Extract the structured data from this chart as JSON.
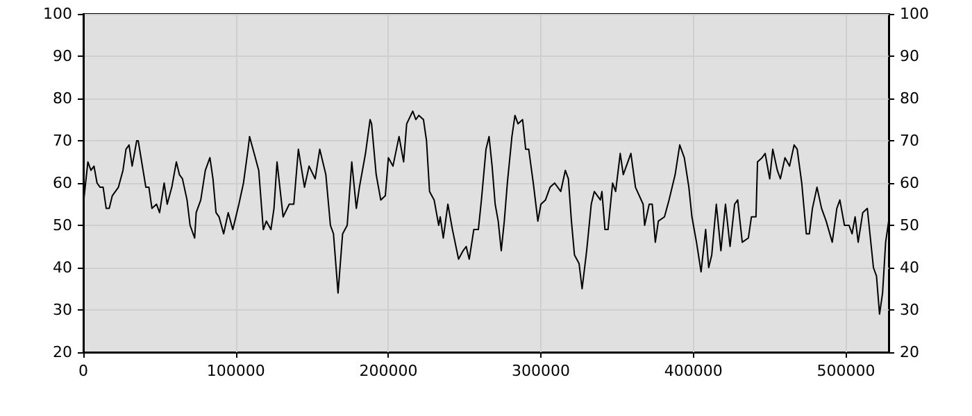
{
  "chart_data": {
    "type": "line",
    "x": [
      0,
      3000,
      5000,
      7000,
      9000,
      11000,
      13000,
      15000,
      17000,
      19000,
      23000,
      26000,
      28000,
      30000,
      32000,
      35000,
      36000,
      41000,
      43000,
      45000,
      48000,
      50000,
      53000,
      55000,
      58000,
      61000,
      63000,
      65000,
      68000,
      70000,
      73000,
      74000,
      77000,
      80000,
      83000,
      85000,
      87000,
      89000,
      92000,
      95000,
      98000,
      102000,
      105000,
      108000,
      109000,
      112000,
      115000,
      118000,
      120000,
      123000,
      125000,
      127000,
      131000,
      135000,
      138000,
      141000,
      145000,
      148000,
      152000,
      155000,
      159000,
      162000,
      164000,
      167000,
      170000,
      173000,
      176000,
      179000,
      181000,
      185000,
      188000,
      189000,
      192000,
      195000,
      198000,
      200000,
      203000,
      207000,
      210000,
      212000,
      216000,
      218000,
      220000,
      223000,
      225000,
      227000,
      230000,
      233000,
      234000,
      236000,
      239000,
      242000,
      246000,
      249000,
      251000,
      253000,
      256000,
      259000,
      261000,
      264000,
      266000,
      268000,
      270000,
      272000,
      274000,
      276000,
      278000,
      281000,
      283000,
      285000,
      288000,
      290000,
      292000,
      295000,
      298000,
      300000,
      303000,
      306000,
      309000,
      313000,
      316000,
      318000,
      320000,
      322000,
      325000,
      327000,
      330000,
      333000,
      335000,
      339000,
      340000,
      342000,
      344000,
      347000,
      349000,
      352000,
      354000,
      358000,
      359000,
      362000,
      367000,
      368000,
      371000,
      373000,
      375000,
      377000,
      381000,
      384000,
      388000,
      391000,
      394000,
      397000,
      399000,
      402000,
      405000,
      408000,
      410000,
      412000,
      415000,
      418000,
      421000,
      424000,
      427000,
      429000,
      432000,
      436000,
      438000,
      441000,
      442000,
      445000,
      447000,
      450000,
      452000,
      455000,
      457000,
      460000,
      463000,
      466000,
      468000,
      471000,
      474000,
      476000,
      478000,
      481000,
      484000,
      487000,
      491000,
      494000,
      496000,
      499000,
      502000,
      504000,
      506000,
      508000,
      511000,
      514000,
      516000,
      518000,
      520000,
      522000,
      524000,
      526000,
      528000
    ],
    "series": [
      {
        "color": "#000000",
        "values": [
          55,
          65,
          63,
          64,
          60,
          59,
          59,
          54,
          54,
          57,
          59,
          63,
          68,
          69,
          64,
          70,
          70,
          59,
          59,
          54,
          55,
          53,
          60,
          55,
          59,
          65,
          62,
          61,
          56,
          50,
          47,
          53,
          56,
          63,
          66,
          61,
          53,
          52,
          48,
          53,
          49,
          55,
          60,
          68,
          71,
          67,
          63,
          49,
          51,
          49,
          54,
          65,
          52,
          55,
          55,
          68,
          59,
          64,
          61,
          68,
          62,
          50,
          48,
          34,
          48,
          50,
          65,
          54,
          59,
          67,
          75,
          74,
          62,
          56,
          57,
          66,
          64,
          71,
          65,
          74,
          77,
          75,
          76,
          75,
          70,
          58,
          56,
          50,
          52,
          47,
          55,
          49,
          42,
          44,
          45,
          42,
          49,
          49,
          56,
          68,
          71,
          64,
          55,
          51,
          44,
          51,
          60,
          71,
          76,
          74,
          75,
          68,
          68,
          60,
          51,
          55,
          56,
          59,
          60,
          58,
          63,
          61,
          51,
          43,
          41,
          35,
          44,
          55,
          58,
          56,
          58,
          49,
          49,
          60,
          58,
          67,
          62,
          66,
          67,
          59,
          55,
          50,
          55,
          55,
          46,
          51,
          52,
          56,
          62,
          69,
          66,
          59,
          52,
          46,
          39,
          49,
          40,
          43,
          55,
          44,
          55,
          45,
          55,
          56,
          46,
          47,
          52,
          52,
          65,
          66,
          67,
          61,
          68,
          63,
          61,
          66,
          64,
          69,
          68,
          60,
          48,
          48,
          54,
          59,
          54,
          51,
          46,
          54,
          56,
          50,
          50,
          48,
          52,
          46,
          53,
          54,
          47,
          40,
          38,
          29,
          34,
          46,
          51
        ]
      }
    ],
    "xlim": [
      0,
      528000
    ],
    "xticks": [
      0,
      100000,
      200000,
      300000,
      400000,
      500000
    ],
    "ylim": [
      20,
      100
    ],
    "yticks": [
      20,
      30,
      40,
      50,
      60,
      70,
      80,
      90,
      100
    ],
    "y2lim": [
      20,
      100
    ],
    "y2ticks": [
      20,
      30,
      40,
      50,
      60,
      70,
      80,
      90,
      100
    ],
    "grid": true,
    "marker": "none",
    "line_style": "solid"
  }
}
